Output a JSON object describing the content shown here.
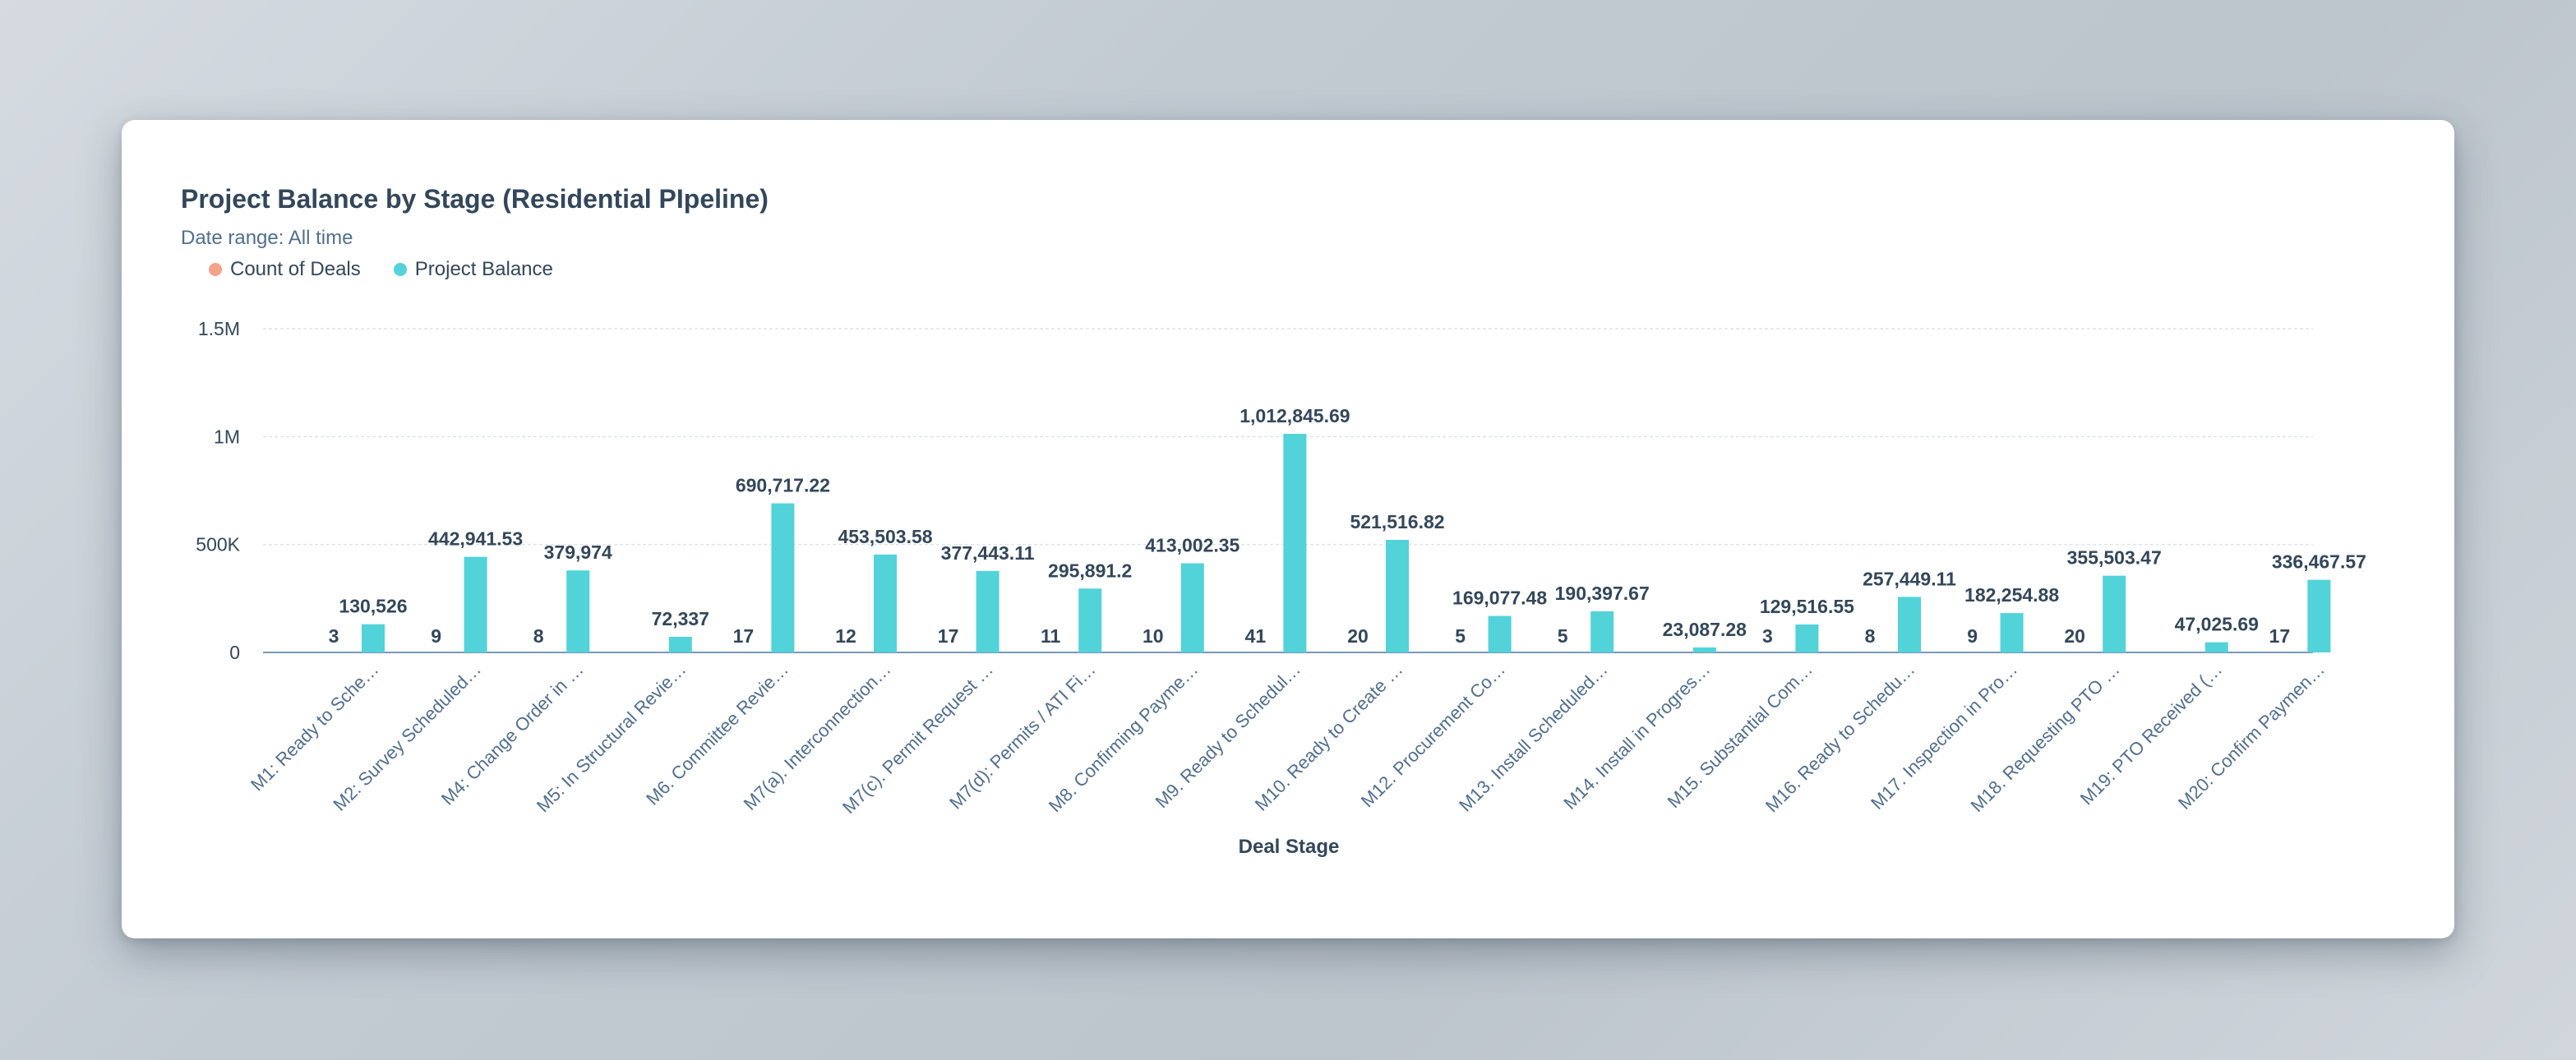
{
  "chart_data": {
    "type": "bar",
    "title": "Project Balance by Stage (Residential PIpeline)",
    "date_range_label": "Date range:",
    "date_range_value": "All time",
    "xlabel": "Deal Stage",
    "ylabel": "",
    "ylim": [
      0,
      1500000
    ],
    "yticks": [
      {
        "value": 0,
        "label": "0"
      },
      {
        "value": 500000,
        "label": "500K"
      },
      {
        "value": 1000000,
        "label": "1M"
      },
      {
        "value": 1500000,
        "label": "1.5M"
      }
    ],
    "grid": true,
    "legend_position": "top-left",
    "categories": [
      "M1: Ready to Sche…",
      "M2: Survey Scheduled…",
      "M4: Change Order in …",
      "M5: In Structural Revie…",
      "M6. Committee Revie…",
      "M7(a). Interconnection…",
      "M7(c). Permit Request …",
      "M7(d): Permits / ATI Fi…",
      "M8. Confirming Payme…",
      "M9. Ready to Schedul…",
      "M10. Ready to Create …",
      "M12. Procurement Co…",
      "M13. Install Scheduled…",
      "M14. Install in Progres…",
      "M15. Substantial Com…",
      "M16. Ready to Schedu…",
      "M17. Inspection in Pro…",
      "M18. Requesting PTO …",
      "M19: PTO Received (…",
      "M20: Confirm Paymen…"
    ],
    "series": [
      {
        "name": "Count of Deals",
        "color": "#f2a38a",
        "values": [
          3,
          9,
          8,
          null,
          17,
          12,
          17,
          11,
          10,
          41,
          20,
          5,
          5,
          null,
          3,
          8,
          9,
          20,
          null,
          17
        ],
        "labels": [
          "3",
          "9",
          "8",
          "",
          "17",
          "12",
          "17",
          "11",
          "10",
          "41",
          "20",
          "5",
          "5",
          "",
          "3",
          "8",
          "9",
          "20",
          "",
          "17"
        ]
      },
      {
        "name": "Project Balance",
        "color": "#51d3d9",
        "values": [
          130526,
          442941.53,
          379974,
          72337,
          690717.22,
          453503.58,
          377443.11,
          295891.2,
          413002.35,
          1012845.69,
          521516.82,
          169077.48,
          190397.67,
          23087.28,
          129516.55,
          257449.11,
          182254.88,
          355503.47,
          47025.69,
          336467.57
        ],
        "labels": [
          "130,526",
          "442,941.53",
          "379,974",
          "72,337",
          "690,717.22",
          "453,503.58",
          "377,443.11",
          "295,891.2",
          "413,002.35",
          "1,012,845.69",
          "521,516.82",
          "169,077.48",
          "190,397.67",
          "23,087.28",
          "129,516.55",
          "257,449.11",
          "182,254.88",
          "355,503.47",
          "47,025.69",
          "336,467.57"
        ]
      }
    ]
  }
}
